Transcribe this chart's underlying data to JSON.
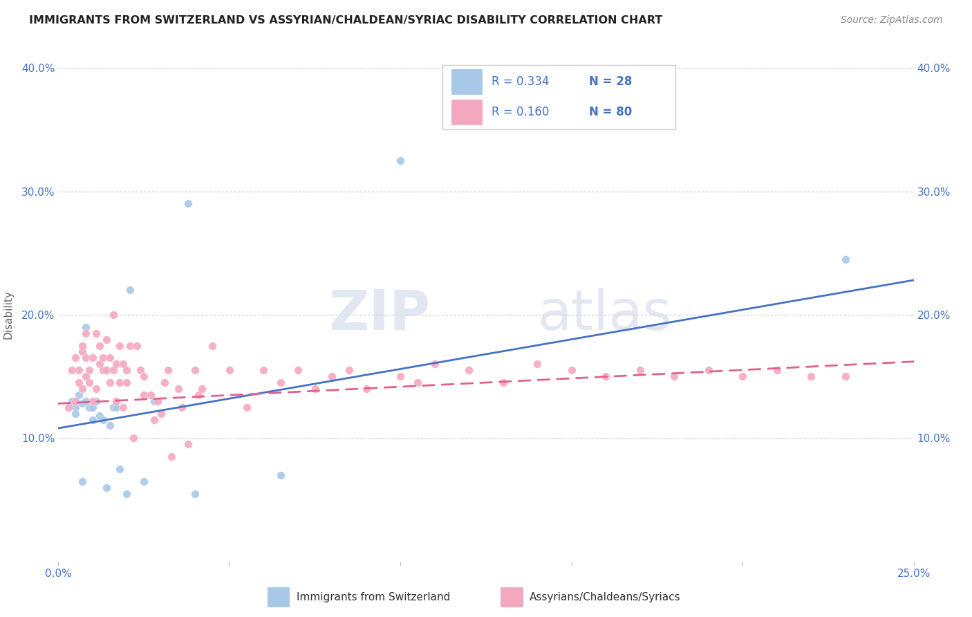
{
  "title": "IMMIGRANTS FROM SWITZERLAND VS ASSYRIAN/CHALDEAN/SYRIAC DISABILITY CORRELATION CHART",
  "source": "Source: ZipAtlas.com",
  "ylabel": "Disability",
  "xlim": [
    0.0,
    0.25
  ],
  "ylim": [
    0.0,
    0.4
  ],
  "xticks": [
    0.0,
    0.05,
    0.1,
    0.15,
    0.2,
    0.25
  ],
  "yticks": [
    0.0,
    0.1,
    0.2,
    0.3,
    0.4
  ],
  "blue_color": "#a8c8e8",
  "pink_color": "#f4a8c0",
  "blue_line_color": "#4472c4",
  "pink_line_color": "#e06090",
  "legend_R_blue": "0.334",
  "legend_N_blue": "28",
  "legend_R_pink": "0.160",
  "legend_N_pink": "80",
  "watermark_zip": "ZIP",
  "watermark_atlas": "atlas",
  "blue_scatter_x": [
    0.004,
    0.005,
    0.005,
    0.006,
    0.007,
    0.007,
    0.008,
    0.008,
    0.009,
    0.01,
    0.01,
    0.011,
    0.012,
    0.013,
    0.014,
    0.015,
    0.016,
    0.017,
    0.018,
    0.02,
    0.021,
    0.025,
    0.028,
    0.038,
    0.04,
    0.065,
    0.1,
    0.23
  ],
  "blue_scatter_y": [
    0.13,
    0.125,
    0.12,
    0.135,
    0.128,
    0.065,
    0.19,
    0.13,
    0.125,
    0.115,
    0.125,
    0.13,
    0.118,
    0.115,
    0.06,
    0.11,
    0.125,
    0.125,
    0.075,
    0.055,
    0.22,
    0.065,
    0.13,
    0.29,
    0.055,
    0.07,
    0.325,
    0.245
  ],
  "pink_scatter_x": [
    0.003,
    0.004,
    0.005,
    0.005,
    0.006,
    0.006,
    0.007,
    0.007,
    0.007,
    0.008,
    0.008,
    0.008,
    0.009,
    0.009,
    0.01,
    0.01,
    0.011,
    0.011,
    0.012,
    0.012,
    0.013,
    0.013,
    0.014,
    0.014,
    0.015,
    0.015,
    0.016,
    0.016,
    0.017,
    0.017,
    0.018,
    0.018,
    0.019,
    0.019,
    0.02,
    0.02,
    0.021,
    0.022,
    0.023,
    0.024,
    0.025,
    0.025,
    0.027,
    0.028,
    0.029,
    0.03,
    0.031,
    0.032,
    0.033,
    0.035,
    0.036,
    0.038,
    0.04,
    0.041,
    0.042,
    0.045,
    0.05,
    0.055,
    0.06,
    0.065,
    0.07,
    0.075,
    0.08,
    0.085,
    0.09,
    0.1,
    0.105,
    0.11,
    0.12,
    0.13,
    0.14,
    0.15,
    0.16,
    0.17,
    0.18,
    0.19,
    0.2,
    0.21,
    0.22,
    0.23
  ],
  "pink_scatter_y": [
    0.125,
    0.155,
    0.13,
    0.165,
    0.155,
    0.145,
    0.17,
    0.175,
    0.14,
    0.15,
    0.185,
    0.165,
    0.155,
    0.145,
    0.165,
    0.13,
    0.14,
    0.185,
    0.16,
    0.175,
    0.155,
    0.165,
    0.18,
    0.155,
    0.165,
    0.145,
    0.2,
    0.155,
    0.16,
    0.13,
    0.175,
    0.145,
    0.16,
    0.125,
    0.155,
    0.145,
    0.175,
    0.1,
    0.175,
    0.155,
    0.15,
    0.135,
    0.135,
    0.115,
    0.13,
    0.12,
    0.145,
    0.155,
    0.085,
    0.14,
    0.125,
    0.095,
    0.155,
    0.135,
    0.14,
    0.175,
    0.155,
    0.125,
    0.155,
    0.145,
    0.155,
    0.14,
    0.15,
    0.155,
    0.14,
    0.15,
    0.145,
    0.16,
    0.155,
    0.145,
    0.16,
    0.155,
    0.15,
    0.155,
    0.15,
    0.155,
    0.15,
    0.155,
    0.15,
    0.15
  ],
  "blue_line_x": [
    0.0,
    0.25
  ],
  "blue_line_y_start": 0.108,
  "blue_line_y_end": 0.228,
  "pink_line_x": [
    0.0,
    0.25
  ],
  "pink_line_y_start": 0.128,
  "pink_line_y_end": 0.162
}
